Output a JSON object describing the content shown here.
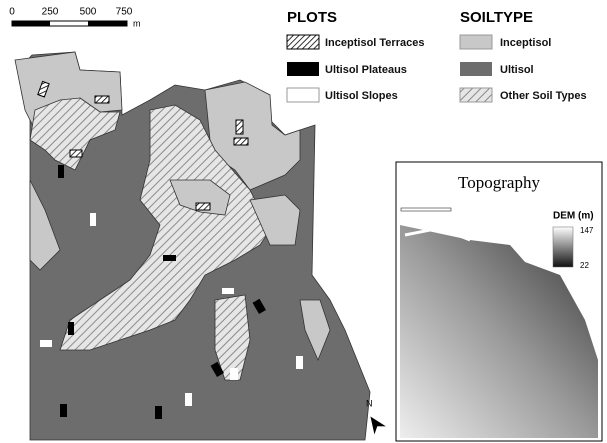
{
  "scale_bar": {
    "labels": [
      "0",
      "250",
      "500",
      "750"
    ],
    "unit": "m"
  },
  "legend": {
    "plots": {
      "title": "PLOTS",
      "items": [
        "Inceptisol Terraces",
        "Ultisol Plateaus",
        "Ultisol Slopes"
      ]
    },
    "soiltype": {
      "title": "SOILTYPE",
      "items": [
        "Inceptisol",
        "Ultisol",
        "Other Soil Types"
      ]
    }
  },
  "inset": {
    "title": "Topography",
    "dem_title": "DEM (m)",
    "dem_max": 147,
    "dem_min": 22
  },
  "north_label": "N"
}
